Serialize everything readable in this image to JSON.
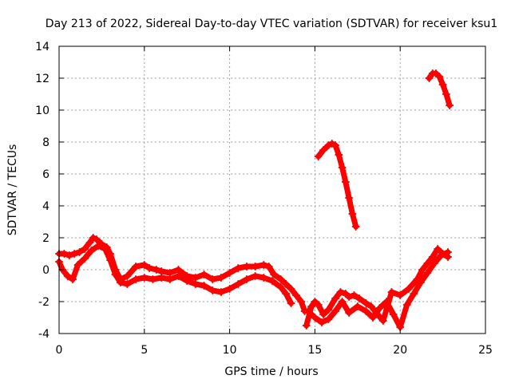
{
  "chart_data": {
    "type": "scatter",
    "title": "Day 213 of 2022, Sidereal Day-to-day VTEC variation (SDTVAR) for receiver ksu1",
    "xlabel": "GPS time / hours",
    "ylabel": "SDTVAR / TECUs",
    "xlim": [
      0,
      25
    ],
    "ylim": [
      -4,
      14
    ],
    "xticks": [
      0,
      5,
      10,
      15,
      20,
      25
    ],
    "yticks": [
      -4,
      -2,
      0,
      2,
      4,
      6,
      8,
      10,
      12,
      14
    ],
    "grid": true,
    "series_color": "#ff0000",
    "series": [
      {
        "name": "sdtvar-main-upper",
        "x": [
          0.0,
          0.3,
          0.6,
          0.9,
          1.2,
          1.5,
          1.8,
          2.0,
          2.2,
          2.5,
          2.8,
          3.0,
          3.3,
          3.6,
          4.0,
          4.5,
          5.0,
          5.3,
          5.7,
          6.0,
          6.5,
          7.0,
          7.5,
          8.0,
          8.5,
          9.0,
          9.5,
          10.0,
          10.5,
          11.0,
          11.5,
          12.0,
          12.3,
          12.6,
          13.0,
          13.3,
          13.6,
          13.9,
          14.2,
          14.4
        ],
        "y": [
          1.0,
          1.0,
          0.9,
          1.0,
          1.1,
          1.3,
          1.7,
          2.0,
          1.9,
          1.6,
          1.4,
          1.0,
          0.0,
          -0.6,
          -0.4,
          0.2,
          0.3,
          0.1,
          0.0,
          -0.1,
          -0.2,
          0.0,
          -0.4,
          -0.5,
          -0.3,
          -0.6,
          -0.5,
          -0.2,
          0.1,
          0.2,
          0.2,
          0.3,
          0.2,
          -0.3,
          -0.6,
          -0.9,
          -1.2,
          -1.6,
          -2.0,
          -2.6
        ]
      },
      {
        "name": "sdtvar-main-lower",
        "x": [
          0.0,
          0.2,
          0.5,
          0.8,
          1.1,
          1.5,
          1.9,
          2.3,
          2.7,
          3.0,
          3.3,
          3.6,
          4.0,
          4.5,
          5.0,
          5.5,
          6.0,
          6.5,
          7.0,
          7.5,
          8.0,
          8.5,
          9.0,
          9.5,
          10.0,
          10.5,
          11.0,
          11.5,
          12.0,
          12.5,
          13.0,
          13.3,
          13.6
        ],
        "y": [
          0.5,
          0.0,
          -0.4,
          -0.6,
          0.3,
          0.7,
          1.2,
          1.5,
          1.3,
          0.6,
          -0.3,
          -0.8,
          -0.9,
          -0.6,
          -0.5,
          -0.6,
          -0.5,
          -0.6,
          -0.4,
          -0.7,
          -0.9,
          -1.0,
          -1.3,
          -1.4,
          -1.2,
          -0.9,
          -0.6,
          -0.4,
          -0.5,
          -0.7,
          -1.1,
          -1.5,
          -2.1
        ]
      },
      {
        "name": "sdtvar-morning-late",
        "x": [
          14.5,
          14.8,
          15.0,
          15.2,
          15.5,
          15.8,
          16.2,
          16.5,
          16.8,
          17.0,
          17.3,
          17.6,
          18.0,
          18.3,
          18.6,
          19.0,
          19.5,
          20.0,
          20.5,
          21.0,
          21.3,
          21.6,
          21.9,
          22.2,
          22.5,
          22.8
        ],
        "y": [
          -3.5,
          -2.3,
          -2.0,
          -2.2,
          -2.8,
          -2.5,
          -1.8,
          -1.4,
          -1.5,
          -1.7,
          -1.6,
          -1.8,
          -2.1,
          -2.3,
          -2.7,
          -3.2,
          -1.4,
          -1.6,
          -1.2,
          -0.6,
          0.0,
          0.4,
          0.8,
          1.3,
          1.0,
          0.8
        ]
      },
      {
        "name": "sdtvar-late-secondary",
        "x": [
          14.6,
          15.0,
          15.4,
          15.8,
          16.2,
          16.6,
          17.0,
          17.5,
          18.0,
          18.4,
          18.8,
          19.2,
          19.6,
          20.0,
          20.4,
          20.8,
          21.2,
          21.6,
          22.0,
          22.4,
          22.8
        ],
        "y": [
          -2.6,
          -3.0,
          -3.3,
          -3.1,
          -2.6,
          -2.0,
          -2.7,
          -2.3,
          -2.6,
          -3.0,
          -2.4,
          -2.0,
          -2.8,
          -3.6,
          -2.2,
          -1.5,
          -0.8,
          -0.2,
          0.4,
          0.9,
          1.1
        ]
      },
      {
        "name": "sdtvar-afternoon-arc",
        "x": [
          15.2,
          15.5,
          15.8,
          16.0,
          16.2,
          16.4,
          16.6,
          16.8,
          17.0,
          17.2,
          17.4
        ],
        "y": [
          7.1,
          7.5,
          7.8,
          7.9,
          7.8,
          7.2,
          6.4,
          5.5,
          4.5,
          3.5,
          2.7
        ]
      },
      {
        "name": "sdtvar-evening-arc",
        "x": [
          21.7,
          21.9,
          22.1,
          22.3,
          22.5,
          22.7,
          22.9
        ],
        "y": [
          12.0,
          12.3,
          12.3,
          12.1,
          11.6,
          11.0,
          10.3
        ]
      }
    ]
  }
}
